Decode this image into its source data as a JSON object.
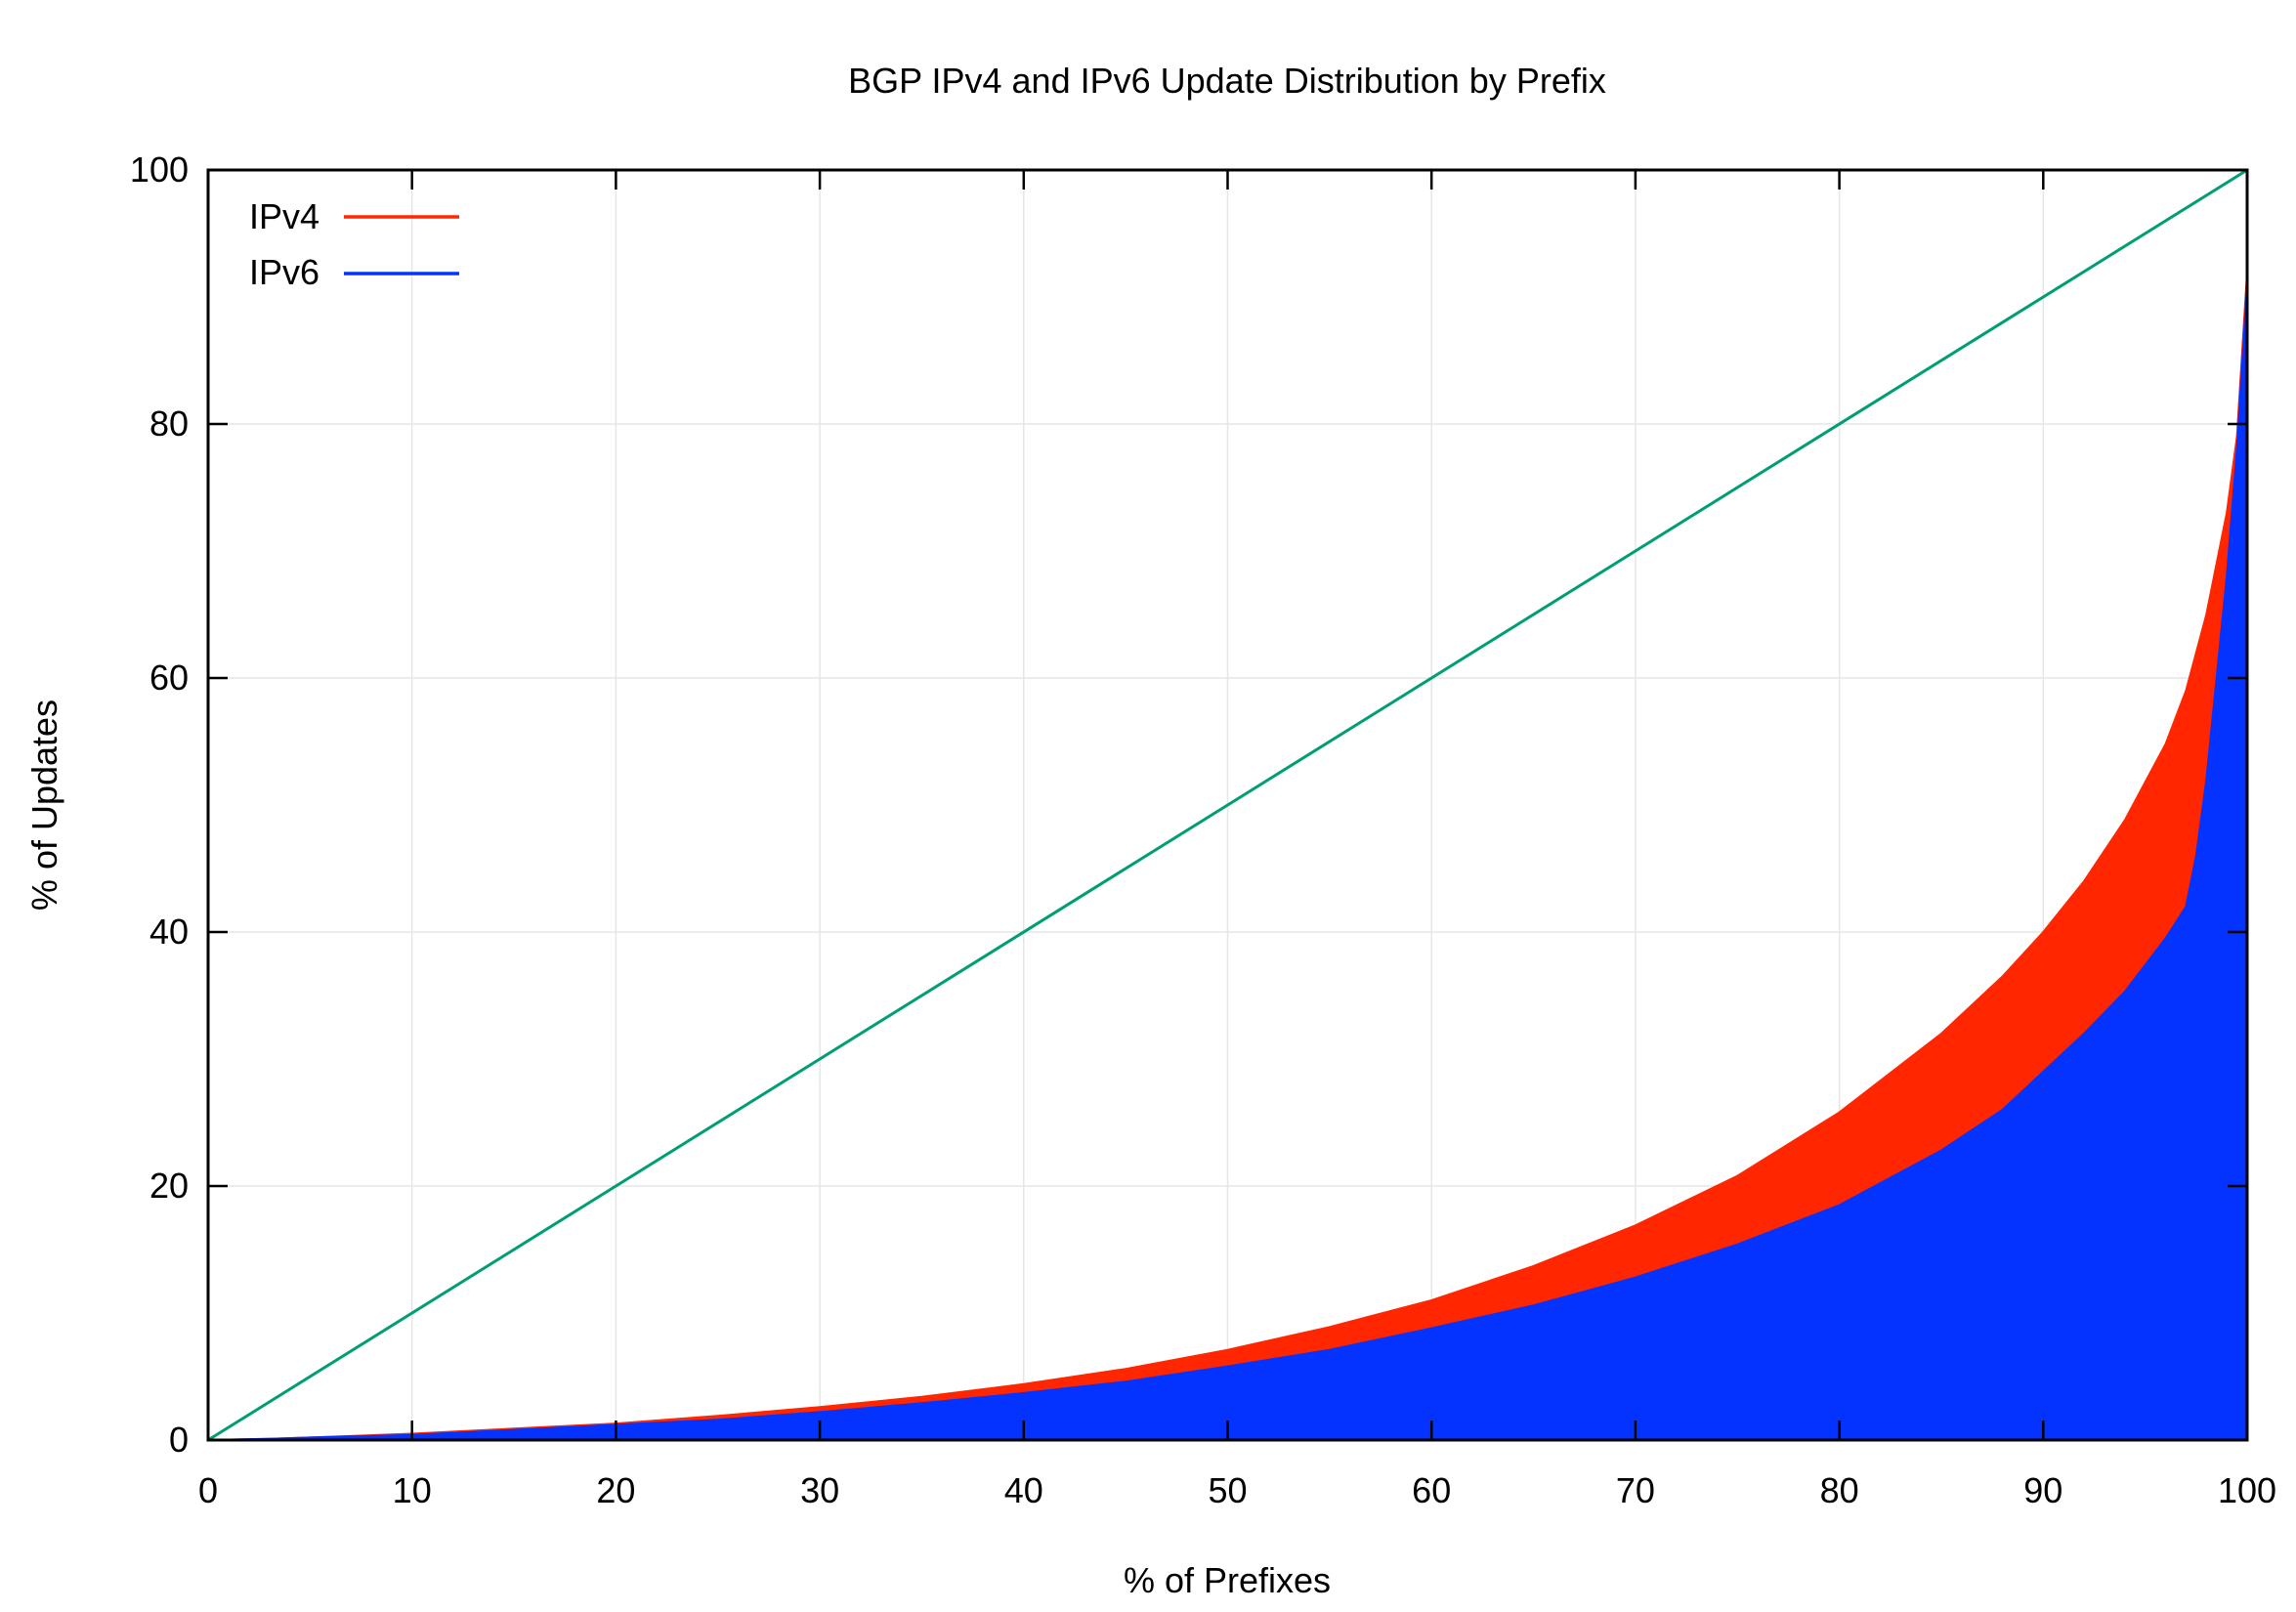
{
  "chart_data": {
    "type": "area",
    "title": "BGP IPv4 and IPv6 Update Distribution by Prefix",
    "xlabel": "% of Prefixes",
    "ylabel": "% of Updates",
    "xlim": [
      0,
      100
    ],
    "ylim": [
      0,
      100
    ],
    "x_ticks": [
      0,
      10,
      20,
      30,
      40,
      50,
      60,
      70,
      80,
      90,
      100
    ],
    "y_ticks": [
      0,
      20,
      40,
      60,
      80,
      100
    ],
    "grid": true,
    "legend_position": "top-left",
    "series": [
      {
        "name": "IPv4",
        "color": "#ff2600",
        "x": [
          0,
          3,
          5,
          10,
          15,
          20,
          25,
          30,
          35,
          40,
          45,
          50,
          55,
          60,
          65,
          70,
          75,
          80,
          85,
          88,
          90,
          92,
          94,
          96,
          97,
          98,
          98.5,
          99,
          99.5,
          100
        ],
        "y": [
          0,
          0.1,
          0.2,
          0.5,
          0.9,
          1.3,
          1.9,
          2.6,
          3.4,
          4.4,
          5.6,
          7.1,
          8.9,
          11.0,
          13.7,
          16.9,
          20.8,
          25.8,
          32.0,
          36.5,
          40.0,
          44.0,
          48.8,
          54.8,
          59.0,
          65.0,
          69.0,
          73.0,
          79.0,
          92.0
        ]
      },
      {
        "name": "IPv6",
        "color": "#0433ff",
        "x": [
          0,
          3,
          5,
          10,
          15,
          20,
          25,
          30,
          35,
          40,
          45,
          50,
          55,
          60,
          65,
          70,
          75,
          80,
          85,
          88,
          90,
          92,
          94,
          96,
          97,
          97.5,
          98,
          98.5,
          99,
          99.5,
          100
        ],
        "y": [
          0,
          0.1,
          0.2,
          0.4,
          0.8,
          1.2,
          1.6,
          2.2,
          2.9,
          3.7,
          4.6,
          5.8,
          7.1,
          8.8,
          10.6,
          12.8,
          15.4,
          18.5,
          22.8,
          26.0,
          29.0,
          32.0,
          35.3,
          39.5,
          42.0,
          46.0,
          52.0,
          60.0,
          68.0,
          78.0,
          91.0
        ]
      },
      {
        "name": "",
        "color": "#009e73",
        "x": [
          0,
          100
        ],
        "y": [
          0,
          100
        ]
      }
    ]
  }
}
